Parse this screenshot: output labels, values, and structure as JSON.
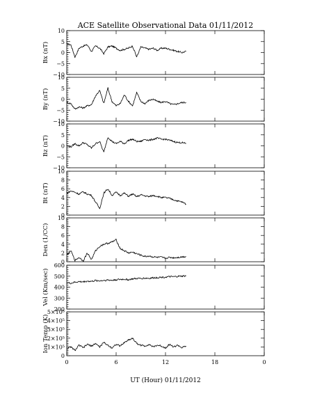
{
  "title": "ACE Satellite Observational Data   01/11/2012",
  "xlabel": "UT (Hour)  01/11/2012",
  "x_ticks": [
    "0",
    "6",
    "12",
    "18",
    "0"
  ],
  "chart_data": {
    "type": "line",
    "title": "ACE Satellite Observational Data   01/11/2012",
    "xlabel": "UT (Hour)  01/11/2012",
    "xlim": [
      0,
      24
    ],
    "x_tick_labels": [
      "0",
      "6",
      "12",
      "18",
      "0"
    ],
    "panels": [
      {
        "ylabel": "Bx (nT)",
        "ylim": [
          -10,
          10
        ],
        "y_ticks": [
          "10",
          "5",
          "0",
          "−5",
          "−10"
        ],
        "y_tick_values": [
          10,
          5,
          0,
          -5,
          -10
        ],
        "x": [
          0,
          0.5,
          1,
          1.5,
          2,
          2.5,
          3,
          3.5,
          4,
          4.5,
          5,
          5.5,
          6,
          6.5,
          7,
          7.5,
          8,
          8.5,
          9,
          9.5,
          10,
          10.5,
          11,
          11.5,
          12,
          12.5,
          13,
          13.5,
          14,
          14.5
        ],
        "values": [
          4,
          3.5,
          -2,
          2,
          3,
          3.5,
          0.5,
          3,
          2,
          -0.5,
          2.5,
          3,
          2,
          1,
          1.5,
          2,
          3,
          -2,
          2.5,
          2,
          1.5,
          2,
          1,
          2,
          2,
          1.5,
          1,
          0.5,
          0,
          0.5
        ]
      },
      {
        "ylabel": "By (nT)",
        "ylim": [
          -10,
          10
        ],
        "y_ticks": [
          "10",
          "5",
          "0",
          "−5",
          "−10"
        ],
        "y_tick_values": [
          10,
          5,
          0,
          -5,
          -10
        ],
        "x": [
          0,
          0.5,
          1,
          1.5,
          2,
          2.5,
          3,
          3.5,
          4,
          4.5,
          5,
          5.5,
          6,
          6.5,
          7,
          7.5,
          8,
          8.5,
          9,
          9.5,
          10,
          10.5,
          11,
          11.5,
          12,
          12.5,
          13,
          13.5,
          14,
          14.5
        ],
        "values": [
          -1.5,
          -2,
          -4.5,
          -3.5,
          -4,
          -3,
          -2.5,
          1.5,
          4,
          -2,
          5,
          -1,
          -3,
          -2,
          2,
          -1,
          -3,
          3,
          -1,
          -2,
          -0.5,
          0,
          -1,
          -1.5,
          -1,
          -2,
          -2.5,
          -2,
          -1.5,
          -1.5
        ]
      },
      {
        "ylabel": "Bz (nT)",
        "ylim": [
          -10,
          10
        ],
        "y_ticks": [
          "10",
          "5",
          "0",
          "−5",
          "−10"
        ],
        "y_tick_values": [
          10,
          5,
          0,
          -5,
          -10
        ],
        "x": [
          0,
          0.5,
          1,
          1.5,
          2,
          2.5,
          3,
          3.5,
          4,
          4.5,
          5,
          5.5,
          6,
          6.5,
          7,
          7.5,
          8,
          8.5,
          9,
          9.5,
          10,
          10.5,
          11,
          11.5,
          12,
          12.5,
          13,
          13.5,
          14,
          14.5
        ],
        "values": [
          0,
          -0.5,
          1,
          0,
          1.5,
          0.5,
          -1,
          1,
          2,
          -3,
          4,
          2,
          1,
          2,
          1,
          2.5,
          3,
          2,
          2,
          3,
          2.5,
          3,
          3.5,
          3,
          3,
          2.5,
          2,
          1.5,
          1.5,
          1
        ]
      },
      {
        "ylabel": "Bt (nT)",
        "ylim": [
          0,
          10
        ],
        "y_ticks": [
          "10",
          "8",
          "6",
          "4",
          "2",
          "0"
        ],
        "y_tick_values": [
          10,
          8,
          6,
          4,
          2,
          0
        ],
        "x": [
          0,
          0.5,
          1,
          1.5,
          2,
          2.5,
          3,
          3.5,
          4,
          4.5,
          5,
          5.5,
          6,
          6.5,
          7,
          7.5,
          8,
          8.5,
          9,
          9.5,
          10,
          10.5,
          11,
          11.5,
          12,
          12.5,
          13,
          13.5,
          14,
          14.5
        ],
        "values": [
          5,
          5.5,
          5.2,
          4.8,
          5.3,
          4.8,
          4.5,
          3,
          1.5,
          5,
          6,
          4.5,
          5.2,
          4.5,
          5,
          4.3,
          4.8,
          4.2,
          4.6,
          4.4,
          4.2,
          4.5,
          4.3,
          4,
          4,
          3.8,
          3.5,
          3.2,
          3,
          2.5
        ]
      },
      {
        "ylabel": "Den (1/CC)",
        "ylim": [
          0,
          10
        ],
        "y_ticks": [
          "10",
          "8",
          "6",
          "4",
          "2",
          "0"
        ],
        "y_tick_values": [
          10,
          8,
          6,
          4,
          2,
          0
        ],
        "x": [
          0,
          0.5,
          1,
          1.5,
          2,
          2.5,
          3,
          3.5,
          4,
          4.5,
          5,
          5.5,
          6,
          6.5,
          7,
          7.5,
          8,
          8.5,
          9,
          9.5,
          10,
          10.5,
          11,
          11.5,
          12,
          12.5,
          13,
          13.5,
          14,
          14.5
        ],
        "values": [
          1.5,
          2.5,
          0.3,
          1,
          0.2,
          2,
          0.5,
          2.5,
          3.5,
          4,
          4.2,
          4.5,
          5,
          3,
          2.5,
          2,
          2.2,
          1.8,
          1.5,
          1.2,
          1.3,
          1.1,
          1,
          1,
          0.8,
          1,
          0.9,
          1,
          1.1,
          1.2
        ]
      },
      {
        "ylabel": "Vel (Km/sec)",
        "ylim": [
          200,
          600
        ],
        "y_ticks": [
          "600",
          "500",
          "400",
          "300",
          "200"
        ],
        "y_tick_values": [
          600,
          500,
          400,
          300,
          200
        ],
        "x": [
          0,
          0.5,
          1,
          1.5,
          2,
          2.5,
          3,
          3.5,
          4,
          4.5,
          5,
          5.5,
          6,
          6.5,
          7,
          7.5,
          8,
          8.5,
          9,
          9.5,
          10,
          10.5,
          11,
          11.5,
          12,
          12.5,
          13,
          13.5,
          14,
          14.5
        ],
        "values": [
          440,
          435,
          445,
          450,
          448,
          455,
          452,
          460,
          458,
          462,
          465,
          462,
          468,
          470,
          472,
          468,
          475,
          478,
          480,
          482,
          480,
          485,
          488,
          490,
          492,
          495,
          494,
          498,
          500,
          502
        ]
      },
      {
        "ylabel": "Ion Temp (K)",
        "ylim": [
          0,
          500000
        ],
        "y_ticks": [
          "5×10⁵",
          "4×10⁵",
          "3×10⁵",
          "2×10⁵",
          "1×10⁵",
          "0"
        ],
        "y_tick_values": [
          500000,
          400000,
          300000,
          200000,
          100000,
          0
        ],
        "x": [
          0,
          0.5,
          1,
          1.5,
          2,
          2.5,
          3,
          3.5,
          4,
          4.5,
          5,
          5.5,
          6,
          6.5,
          7,
          7.5,
          8,
          8.5,
          9,
          9.5,
          10,
          10.5,
          11,
          11.5,
          12,
          12.5,
          13,
          13.5,
          14,
          14.5
        ],
        "values": [
          80000,
          100000,
          60000,
          120000,
          90000,
          130000,
          110000,
          140000,
          100000,
          150000,
          120000,
          90000,
          130000,
          110000,
          150000,
          180000,
          200000,
          140000,
          120000,
          110000,
          130000,
          100000,
          120000,
          110000,
          90000,
          130000,
          100000,
          120000,
          90000,
          110000
        ]
      }
    ]
  }
}
